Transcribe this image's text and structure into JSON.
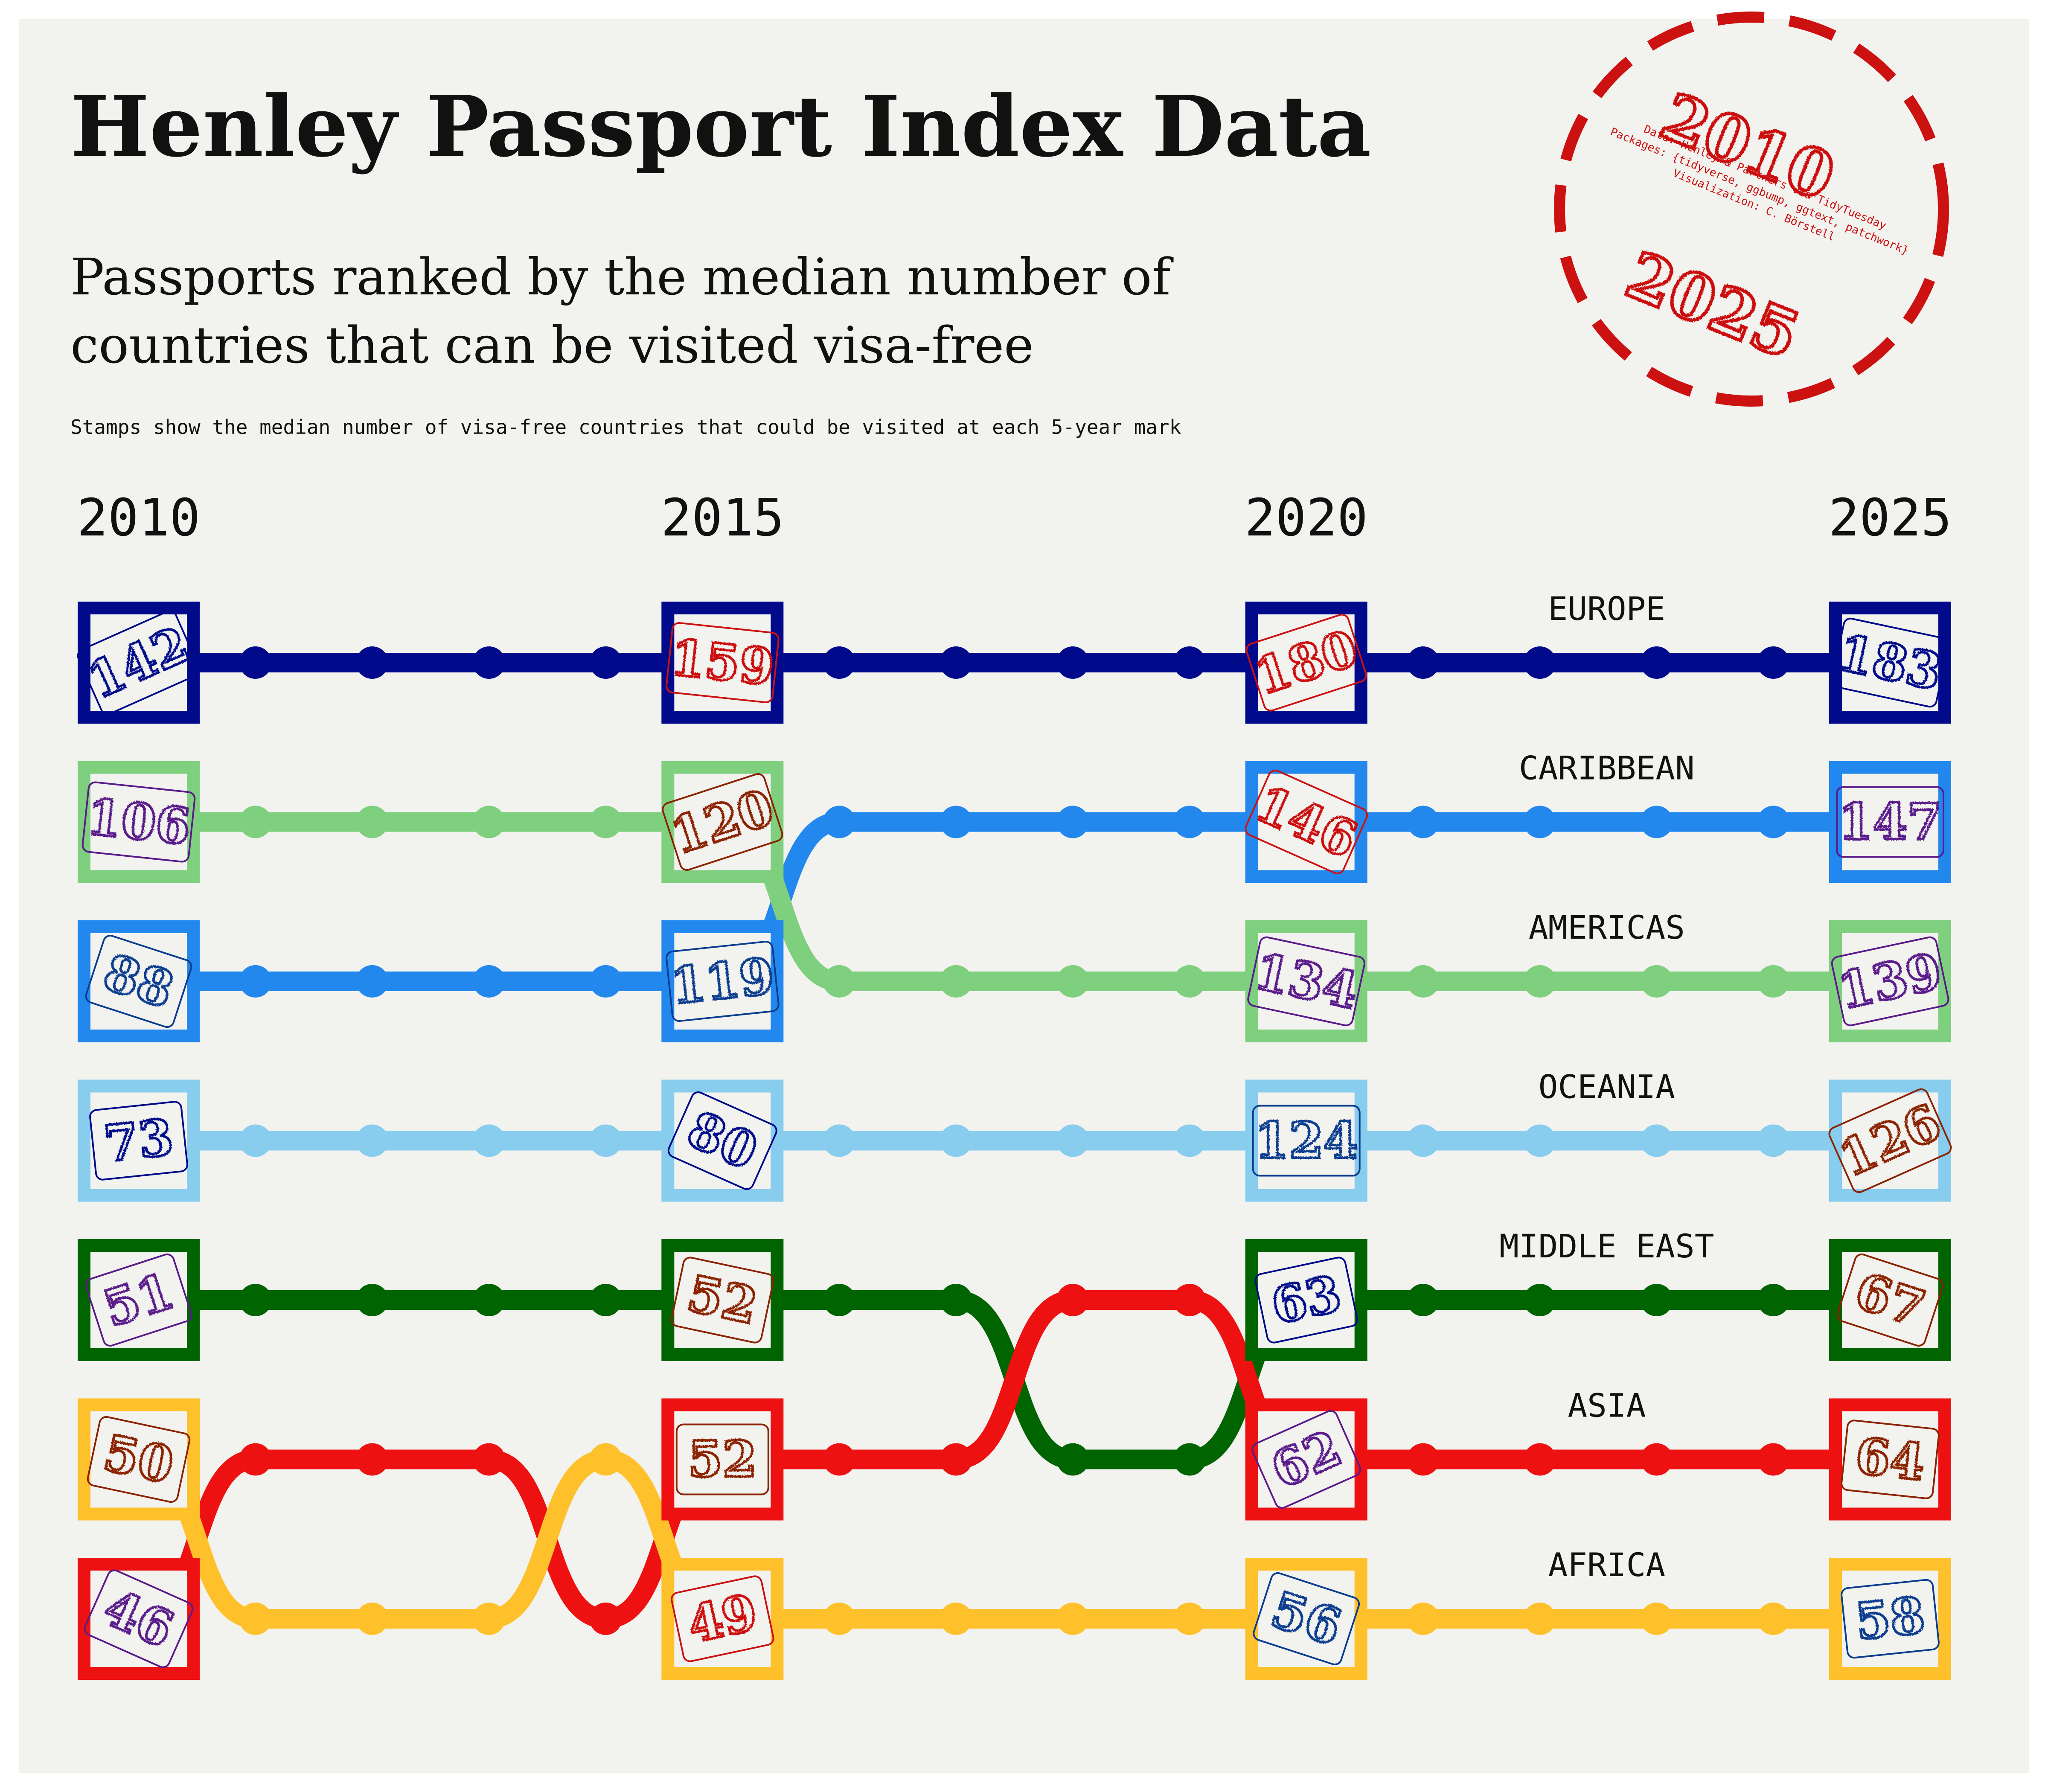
{
  "title": "Henley Passport Index Data",
  "subtitle_lines": [
    "Passports ranked by the median number of",
    "countries that can be visited visa-free"
  ],
  "caption": "Stamps show the median number of visa-free countries that could be visited at each 5-year mark",
  "credit_lines": [
    "Data: Henley & Partners via TidyTuesday",
    "Packages: {tidyverse, ggbump, ggtext, patchwork}",
    "Visualization: C. Börstell"
  ],
  "stamp_years": [
    "2010",
    "2025"
  ],
  "colors": {
    "background": "#f2f2ef",
    "stamp_red": "#cc1111",
    "text": "#111111",
    "node_fill": "#f2f2ef"
  },
  "chart_data": {
    "type": "bump",
    "x_label_years": [
      "2010",
      "2015",
      "2020",
      "2025"
    ],
    "x_years_all": [
      2010,
      2011,
      2012,
      2013,
      2014,
      2015,
      2016,
      2017,
      2018,
      2019,
      2020,
      2021,
      2022,
      2023,
      2024,
      2025
    ],
    "rank_range": [
      1,
      7
    ],
    "series": [
      {
        "name": "EUROPE",
        "color": "#000a8a",
        "ranks": [
          1,
          1,
          1,
          1,
          1,
          1,
          1,
          1,
          1,
          1,
          1,
          1,
          1,
          1,
          1,
          1
        ],
        "values": [
          "142",
          "159",
          "180",
          "183"
        ],
        "stamp_colors": [
          "#000a8a",
          "#cc1111",
          "#cc1111",
          "#000a8a"
        ]
      },
      {
        "name": "CARIBBEAN",
        "color": "#2288ee",
        "ranks": [
          3,
          3,
          3,
          3,
          3,
          3,
          2,
          2,
          2,
          2,
          2,
          2,
          2,
          2,
          2,
          2
        ],
        "values": [
          "88",
          "119",
          "146",
          "147"
        ],
        "stamp_colors": [
          "#0a3d8f",
          "#0a3d8f",
          "#cc1111",
          "#5a1a8a"
        ]
      },
      {
        "name": "AMERICAS",
        "color": "#7ecf7e",
        "ranks": [
          2,
          2,
          2,
          2,
          2,
          2,
          3,
          3,
          3,
          3,
          3,
          3,
          3,
          3,
          3,
          3
        ],
        "values": [
          "106",
          "120",
          "134",
          "139"
        ],
        "stamp_colors": [
          "#5a1a8a",
          "#8b2200",
          "#5a1a8a",
          "#5a1a8a"
        ]
      },
      {
        "name": "OCEANIA",
        "color": "#88ccee",
        "ranks": [
          4,
          4,
          4,
          4,
          4,
          4,
          4,
          4,
          4,
          4,
          4,
          4,
          4,
          4,
          4,
          4
        ],
        "values": [
          "73",
          "80",
          "124",
          "126"
        ],
        "stamp_colors": [
          "#000a8a",
          "#000a8a",
          "#0a3d8f",
          "#8b2200"
        ]
      },
      {
        "name": "MIDDLE EAST",
        "color": "#006400",
        "ranks": [
          5,
          5,
          5,
          5,
          5,
          5,
          5,
          5,
          6,
          6,
          5,
          5,
          5,
          5,
          5,
          5
        ],
        "values": [
          "51",
          "52",
          "63",
          "67"
        ],
        "stamp_colors": [
          "#5a1a8a",
          "#8b2200",
          "#000a8a",
          "#8b2200"
        ]
      },
      {
        "name": "ASIA",
        "color": "#ee1111",
        "ranks": [
          7,
          6,
          6,
          6,
          7,
          6,
          6,
          6,
          5,
          5,
          6,
          6,
          6,
          6,
          6,
          6
        ],
        "values": [
          "46",
          "52",
          "62",
          "64"
        ],
        "stamp_colors": [
          "#5a1a8a",
          "#8b2200",
          "#5a1a8a",
          "#8b2200"
        ]
      },
      {
        "name": "AFRICA",
        "color": "#ffc12b",
        "ranks": [
          6,
          7,
          7,
          7,
          6,
          7,
          7,
          7,
          7,
          7,
          7,
          7,
          7,
          7,
          7,
          7
        ],
        "values": [
          "50",
          "49",
          "56",
          "58"
        ],
        "stamp_colors": [
          "#8b2200",
          "#cc1111",
          "#0a3d8f",
          "#0a3d8f"
        ]
      }
    ]
  }
}
